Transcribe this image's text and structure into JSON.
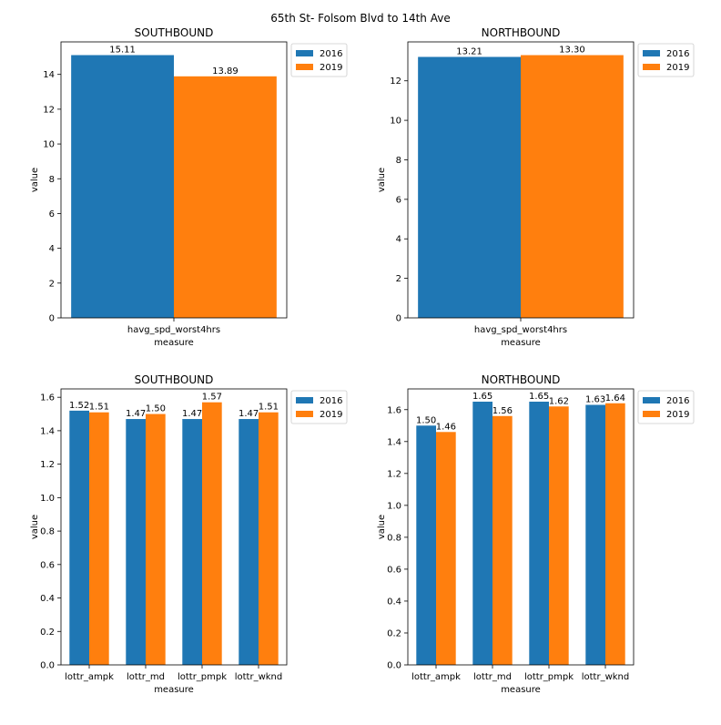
{
  "figure": {
    "suptitle": "65th St- Folsom Blvd to 14th Ave",
    "colors": {
      "2016": "#1f77b4",
      "2019": "#ff7f0e"
    }
  },
  "chart_data": [
    {
      "type": "bar",
      "title": "SOUTHBOUND",
      "xlabel": "measure",
      "ylabel": "value",
      "categories": [
        "havg_spd_worst4hrs"
      ],
      "series": [
        {
          "name": "2016",
          "values": [
            15.11
          ],
          "labels": [
            "15.11"
          ]
        },
        {
          "name": "2019",
          "values": [
            13.89
          ],
          "labels": [
            "13.89"
          ]
        }
      ],
      "ylim": [
        0,
        15.87
      ],
      "yticks": [
        0,
        2,
        4,
        6,
        8,
        10,
        12,
        14
      ],
      "ytick_labels": [
        "0",
        "2",
        "4",
        "6",
        "8",
        "10",
        "12",
        "14"
      ],
      "legend": "upper-right-outside",
      "grid": false
    },
    {
      "type": "bar",
      "title": "NORTHBOUND",
      "xlabel": "measure",
      "ylabel": "value",
      "categories": [
        "havg_spd_worst4hrs"
      ],
      "series": [
        {
          "name": "2016",
          "values": [
            13.21
          ],
          "labels": [
            "13.21"
          ]
        },
        {
          "name": "2019",
          "values": [
            13.3
          ],
          "labels": [
            "13.30"
          ]
        }
      ],
      "ylim": [
        0,
        13.97
      ],
      "yticks": [
        0,
        2,
        4,
        6,
        8,
        10,
        12
      ],
      "ytick_labels": [
        "0",
        "2",
        "4",
        "6",
        "8",
        "10",
        "12"
      ],
      "legend": "upper-right-outside",
      "grid": false
    },
    {
      "type": "bar",
      "title": "SOUTHBOUND",
      "xlabel": "measure",
      "ylabel": "value",
      "categories": [
        "lottr_ampk",
        "lottr_md",
        "lottr_pmpk",
        "lottr_wknd"
      ],
      "series": [
        {
          "name": "2016",
          "values": [
            1.52,
            1.47,
            1.47,
            1.47
          ],
          "labels": [
            "1.52",
            "1.47",
            "1.47",
            "1.47"
          ]
        },
        {
          "name": "2019",
          "values": [
            1.51,
            1.5,
            1.57,
            1.51
          ],
          "labels": [
            "1.51",
            "1.50",
            "1.57",
            "1.51"
          ]
        }
      ],
      "ylim": [
        0,
        1.65
      ],
      "yticks": [
        0,
        0.2,
        0.4,
        0.6,
        0.8,
        1.0,
        1.2,
        1.4,
        1.6
      ],
      "ytick_labels": [
        "0.0",
        "0.2",
        "0.4",
        "0.6",
        "0.8",
        "1.0",
        "1.2",
        "1.4",
        "1.6"
      ],
      "legend": "upper-right-outside",
      "grid": false
    },
    {
      "type": "bar",
      "title": "NORTHBOUND",
      "xlabel": "measure",
      "ylabel": "value",
      "categories": [
        "lottr_ampk",
        "lottr_md",
        "lottr_pmpk",
        "lottr_wknd"
      ],
      "series": [
        {
          "name": "2016",
          "values": [
            1.5,
            1.65,
            1.65,
            1.63
          ],
          "labels": [
            "1.50",
            "1.65",
            "1.65",
            "1.63"
          ]
        },
        {
          "name": "2019",
          "values": [
            1.46,
            1.56,
            1.62,
            1.64
          ],
          "labels": [
            "1.46",
            "1.56",
            "1.62",
            "1.64"
          ]
        }
      ],
      "ylim": [
        0,
        1.73
      ],
      "yticks": [
        0,
        0.2,
        0.4,
        0.6,
        0.8,
        1.0,
        1.2,
        1.4,
        1.6
      ],
      "ytick_labels": [
        "0.0",
        "0.2",
        "0.4",
        "0.6",
        "0.8",
        "1.0",
        "1.2",
        "1.4",
        "1.6"
      ],
      "legend": "upper-right-outside",
      "grid": false
    }
  ]
}
